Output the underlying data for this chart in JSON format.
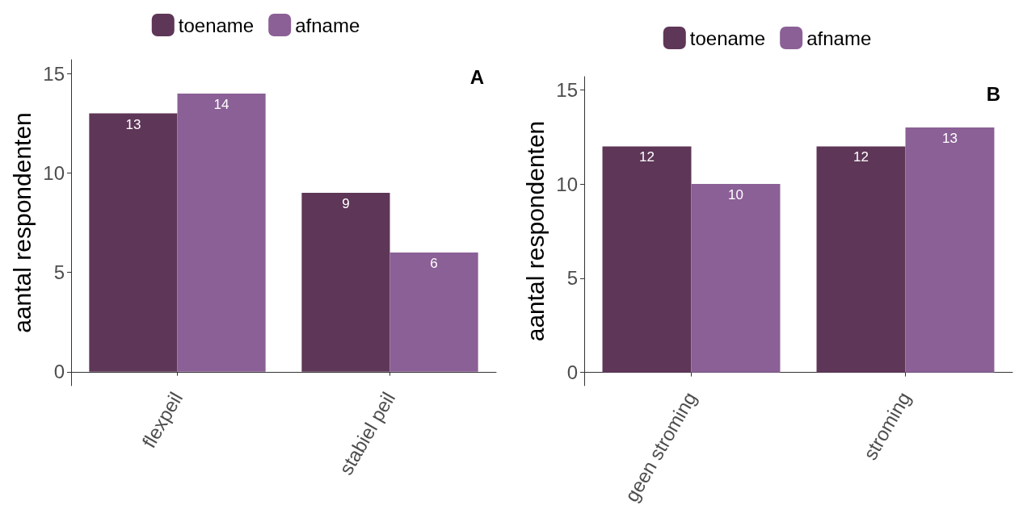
{
  "chart_data": [
    {
      "type": "bar",
      "title": "A",
      "categories": [
        "flexpeil",
        "stabiel peil"
      ],
      "ylabel": "aantal respondenten",
      "series": [
        {
          "name": "toename",
          "color": "#5e3657",
          "values": [
            13,
            9
          ]
        },
        {
          "name": "afname",
          "color": "#8b6096",
          "values": [
            14,
            6
          ]
        }
      ],
      "ylim": [
        -0.7,
        15.7
      ],
      "yticks": [
        0,
        5,
        10,
        15
      ],
      "data_labels": true,
      "grid": false,
      "legend": "top"
    },
    {
      "type": "bar",
      "title": "B",
      "categories": [
        "geen stroming",
        "stroming"
      ],
      "ylabel": "aantal respondenten",
      "series": [
        {
          "name": "toename",
          "color": "#5e3657",
          "values": [
            12,
            12
          ]
        },
        {
          "name": "afname",
          "color": "#8b6096",
          "values": [
            10,
            13
          ]
        }
      ],
      "ylim": [
        -0.7,
        15.7
      ],
      "yticks": [
        0,
        5,
        10,
        15
      ],
      "data_labels": true,
      "grid": false,
      "legend": "top"
    }
  ]
}
